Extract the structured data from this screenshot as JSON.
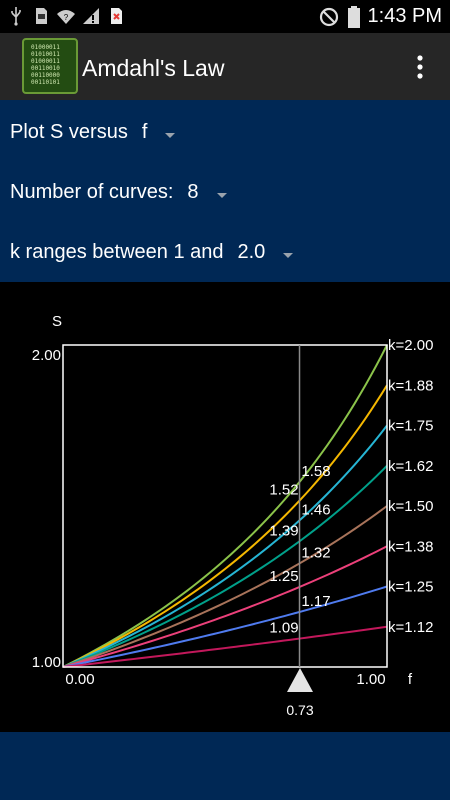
{
  "status_bar": {
    "time": "1:43 PM",
    "left_icons": [
      "usb-icon",
      "sd-card-icon",
      "wifi-question-icon",
      "signal-alert-icon",
      "sim-error-icon"
    ],
    "right_icons": [
      "do-not-disturb-icon",
      "battery-icon"
    ]
  },
  "app_bar": {
    "title": "Amdahl's Law",
    "icon_lines": [
      "01000011",
      "01010011",
      "01000011",
      "00110010",
      "00110000",
      "00110101"
    ],
    "menu_icon": "overflow-menu-icon"
  },
  "controls": {
    "plot_label": "Plot S versus",
    "plot_value": "f",
    "curves_label": "Number of curves:",
    "curves_value": "8",
    "k_label": "k ranges between 1 and",
    "k_value": "2.0"
  },
  "colors": {
    "controls_bg": "#002855",
    "app_bar_bg": "#262626",
    "status_bar_bg": "#000000"
  },
  "chart_data": {
    "type": "line",
    "xlabel": "f",
    "ylabel": "S",
    "xlim": [
      0,
      1
    ],
    "ylim": [
      1,
      2
    ],
    "x_tick_labels": [
      "0.00",
      "1.00"
    ],
    "y_tick_labels": [
      "1.00",
      "2.00"
    ],
    "slider_value": "0.73",
    "series": [
      {
        "name": "k=2.00",
        "k": 2.0,
        "color": "#8bc34a",
        "label_at_cursor": "1.58"
      },
      {
        "name": "k=1.88",
        "k": 1.875,
        "color": "#f5b800",
        "label_at_cursor": "1.52"
      },
      {
        "name": "k=1.75",
        "k": 1.75,
        "color": "#26b5d4",
        "label_at_cursor": "1.46"
      },
      {
        "name": "k=1.62",
        "k": 1.625,
        "color": "#00a08a",
        "label_at_cursor": "1.39"
      },
      {
        "name": "k=1.50",
        "k": 1.5,
        "color": "#a8735a",
        "label_at_cursor": "1.32"
      },
      {
        "name": "k=1.38",
        "k": 1.375,
        "color": "#ec407a",
        "label_at_cursor": "1.25"
      },
      {
        "name": "k=1.25",
        "k": 1.25,
        "color": "#4f7bef",
        "label_at_cursor": "1.17"
      },
      {
        "name": "k=1.12",
        "k": 1.125,
        "color": "#c2185b",
        "label_at_cursor": "1.09"
      }
    ],
    "grid": false
  }
}
